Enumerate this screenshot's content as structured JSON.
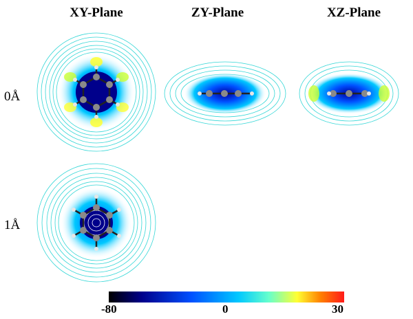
{
  "columns": [
    "XY-Plane",
    "ZY-Plane",
    "XZ-Plane"
  ],
  "rows": [
    "0Å",
    "1Å"
  ],
  "colorbar": {
    "min_label": "-80",
    "mid_label": "0",
    "max_label": "30",
    "stops": [
      "#000000",
      "#00008b",
      "#0050ff",
      "#00c8ff",
      "#66ffcc",
      "#ffff33",
      "#ff8000",
      "#ff1a1a"
    ]
  },
  "colors": {
    "contour": "#33d6d6",
    "carbon": "#8a8a8a",
    "hydrogen": "#e6e6e6",
    "bond": "#222222"
  }
}
